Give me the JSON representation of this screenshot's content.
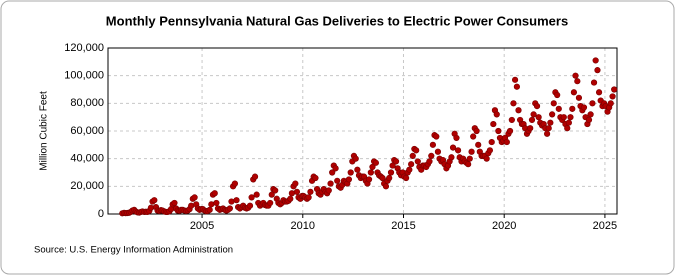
{
  "chart_data": {
    "type": "scatter",
    "title": "Monthly Pennsylvania Natural Gas Deliveries to Electric Power Consumers",
    "ylabel": "Million Cubic Feet",
    "source": "Source: U.S. Energy Information Administration",
    "color": "#b00000",
    "grid": true,
    "xlim": [
      2000.33,
      2025.6
    ],
    "xticks": [
      2005,
      2010,
      2015,
      2020,
      2025
    ],
    "ylim": [
      0,
      120000
    ],
    "yticks": [
      0,
      {
        "value": 20000,
        "label": "20,000"
      },
      {
        "value": 40000,
        "label": "40,000"
      },
      {
        "value": 60000,
        "label": "60,000"
      },
      {
        "value": 80000,
        "label": "80,000"
      },
      {
        "value": 100000,
        "label": "100,000"
      },
      {
        "value": 120000,
        "label": "120,000"
      }
    ],
    "x": [
      2001.04,
      2001.13,
      2001.21,
      2001.29,
      2001.38,
      2001.46,
      2001.54,
      2001.63,
      2001.71,
      2001.79,
      2001.88,
      2001.96,
      2002.04,
      2002.13,
      2002.21,
      2002.29,
      2002.38,
      2002.46,
      2002.54,
      2002.63,
      2002.71,
      2002.79,
      2002.88,
      2002.96,
      2003.04,
      2003.13,
      2003.21,
      2003.29,
      2003.38,
      2003.46,
      2003.54,
      2003.63,
      2003.71,
      2003.79,
      2003.88,
      2003.96,
      2004.04,
      2004.13,
      2004.21,
      2004.29,
      2004.38,
      2004.46,
      2004.54,
      2004.63,
      2004.71,
      2004.79,
      2004.88,
      2004.96,
      2005.04,
      2005.13,
      2005.21,
      2005.29,
      2005.38,
      2005.46,
      2005.54,
      2005.63,
      2005.71,
      2005.79,
      2005.88,
      2005.96,
      2006.04,
      2006.13,
      2006.21,
      2006.29,
      2006.38,
      2006.46,
      2006.54,
      2006.63,
      2006.71,
      2006.79,
      2006.88,
      2006.96,
      2007.04,
      2007.13,
      2007.21,
      2007.29,
      2007.38,
      2007.46,
      2007.54,
      2007.63,
      2007.71,
      2007.79,
      2007.88,
      2007.96,
      2008.04,
      2008.13,
      2008.21,
      2008.29,
      2008.38,
      2008.46,
      2008.54,
      2008.63,
      2008.71,
      2008.79,
      2008.88,
      2008.96,
      2009.04,
      2009.13,
      2009.21,
      2009.29,
      2009.38,
      2009.46,
      2009.54,
      2009.63,
      2009.71,
      2009.79,
      2009.88,
      2009.96,
      2010.04,
      2010.13,
      2010.21,
      2010.29,
      2010.38,
      2010.46,
      2010.54,
      2010.63,
      2010.71,
      2010.79,
      2010.88,
      2010.96,
      2011.04,
      2011.13,
      2011.21,
      2011.29,
      2011.38,
      2011.46,
      2011.54,
      2011.63,
      2011.71,
      2011.79,
      2011.88,
      2011.96,
      2012.04,
      2012.13,
      2012.21,
      2012.29,
      2012.38,
      2012.46,
      2012.54,
      2012.63,
      2012.71,
      2012.79,
      2012.88,
      2012.96,
      2013.04,
      2013.13,
      2013.21,
      2013.29,
      2013.38,
      2013.46,
      2013.54,
      2013.63,
      2013.71,
      2013.79,
      2013.88,
      2013.96,
      2014.04,
      2014.13,
      2014.21,
      2014.29,
      2014.38,
      2014.46,
      2014.54,
      2014.63,
      2014.71,
      2014.79,
      2014.88,
      2014.96,
      2015.04,
      2015.13,
      2015.21,
      2015.29,
      2015.38,
      2015.46,
      2015.54,
      2015.63,
      2015.71,
      2015.79,
      2015.88,
      2015.96,
      2016.04,
      2016.13,
      2016.21,
      2016.29,
      2016.38,
      2016.46,
      2016.54,
      2016.63,
      2016.71,
      2016.79,
      2016.88,
      2016.96,
      2017.04,
      2017.13,
      2017.21,
      2017.29,
      2017.38,
      2017.46,
      2017.54,
      2017.63,
      2017.71,
      2017.79,
      2017.88,
      2017.96,
      2018.04,
      2018.13,
      2018.21,
      2018.29,
      2018.38,
      2018.46,
      2018.54,
      2018.63,
      2018.71,
      2018.79,
      2018.88,
      2018.96,
      2019.04,
      2019.13,
      2019.21,
      2019.29,
      2019.38,
      2019.46,
      2019.54,
      2019.63,
      2019.71,
      2019.79,
      2019.88,
      2019.96,
      2020.04,
      2020.13,
      2020.21,
      2020.29,
      2020.38,
      2020.46,
      2020.54,
      2020.63,
      2020.71,
      2020.79,
      2020.88,
      2020.96,
      2021.04,
      2021.13,
      2021.21,
      2021.29,
      2021.38,
      2021.46,
      2021.54,
      2021.63,
      2021.71,
      2021.79,
      2021.88,
      2021.96,
      2022.04,
      2022.13,
      2022.21,
      2022.29,
      2022.38,
      2022.46,
      2022.54,
      2022.63,
      2022.71,
      2022.79,
      2022.88,
      2022.96,
      2023.04,
      2023.13,
      2023.21,
      2023.29,
      2023.38,
      2023.46,
      2023.54,
      2023.63,
      2023.71,
      2023.79,
      2023.88,
      2023.96,
      2024.04,
      2024.13,
      2024.21,
      2024.29,
      2024.38,
      2024.46,
      2024.54,
      2024.63,
      2024.71,
      2024.79,
      2024.88,
      2024.96,
      2025.04,
      2025.13,
      2025.21,
      2025.29,
      2025.38,
      2025.46
    ],
    "values": [
      500,
      800,
      600,
      700,
      900,
      1500,
      2500,
      3000,
      1800,
      1200,
      1000,
      1500,
      1800,
      1500,
      1600,
      1500,
      2200,
      4500,
      9000,
      10000,
      5000,
      2500,
      2200,
      2800,
      2500,
      1800,
      1500,
      1500,
      2000,
      3500,
      7000,
      8000,
      4000,
      2500,
      2300,
      3000,
      3000,
      2500,
      2200,
      2500,
      3500,
      6000,
      11000,
      12000,
      7000,
      4000,
      3000,
      3500,
      3500,
      2500,
      2000,
      2200,
      3000,
      7000,
      14000,
      15000,
      8000,
      4000,
      3000,
      3500,
      4000,
      3000,
      2500,
      3000,
      4000,
      9000,
      20000,
      22000,
      10000,
      5000,
      4000,
      5000,
      6000,
      4500,
      4000,
      4500,
      6000,
      12000,
      25000,
      27000,
      14000,
      8000,
      6000,
      7000,
      8000,
      6500,
      6000,
      6000,
      8000,
      14000,
      18000,
      17000,
      11000,
      8000,
      7000,
      8000,
      10000,
      9000,
      9000,
      9500,
      11000,
      15000,
      20000,
      22000,
      16000,
      12000,
      11000,
      13000,
      13000,
      12000,
      11000,
      12000,
      16000,
      24000,
      27000,
      26000,
      18000,
      15000,
      14000,
      16000,
      18000,
      16000,
      15000,
      17000,
      22000,
      30000,
      35000,
      33000,
      24000,
      20000,
      19000,
      21000,
      24000,
      23000,
      22000,
      25000,
      30000,
      38000,
      42000,
      40000,
      32000,
      28000,
      26000,
      27000,
      27000,
      24000,
      22000,
      25000,
      30000,
      34000,
      38000,
      37000,
      30000,
      28000,
      27000,
      26000,
      22000,
      20000,
      24000,
      26000,
      30000,
      35000,
      39000,
      38000,
      33000,
      30000,
      28000,
      30000,
      27000,
      26000,
      30000,
      32000,
      36000,
      42000,
      47000,
      46000,
      38000,
      34000,
      32000,
      35000,
      35000,
      34000,
      36000,
      38000,
      42000,
      50000,
      57000,
      56000,
      45000,
      40000,
      38000,
      39000,
      36000,
      33000,
      35000,
      38000,
      41000,
      48000,
      58000,
      55000,
      46000,
      41000,
      38000,
      40000,
      38000,
      37000,
      36000,
      40000,
      45000,
      56000,
      62000,
      60000,
      50000,
      45000,
      42000,
      42000,
      42000,
      40000,
      44000,
      46000,
      52000,
      65000,
      75000,
      72000,
      60000,
      55000,
      52000,
      53000,
      55000,
      52000,
      58000,
      60000,
      68000,
      80000,
      97000,
      92000,
      75000,
      68000,
      65000,
      65000,
      62000,
      58000,
      60000,
      62000,
      68000,
      72000,
      80000,
      78000,
      70000,
      66000,
      64000,
      65000,
      62000,
      58000,
      62000,
      66000,
      72000,
      80000,
      88000,
      86000,
      76000,
      70000,
      68000,
      70000,
      65000,
      62000,
      66000,
      70000,
      76000,
      88000,
      100000,
      96000,
      84000,
      78000,
      75000,
      77000,
      70000,
      65000,
      68000,
      72000,
      80000,
      95000,
      111000,
      104000,
      88000,
      82000,
      78000,
      80000,
      78000,
      74000,
      77000,
      80000,
      85000,
      90000
    ]
  }
}
